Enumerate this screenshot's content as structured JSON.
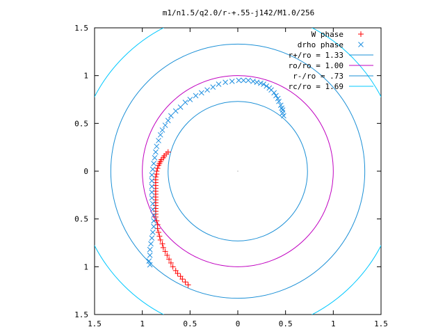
{
  "chart_data": {
    "type": "scatter",
    "title": "m1/n1.5/q2.0/r-+.55-j142/M1.0/256",
    "xlabel": "",
    "ylabel": "",
    "xlim": [
      -1.5,
      1.5
    ],
    "ylim": [
      -1.5,
      1.5
    ],
    "x_tick_values": [
      -1.5,
      -1,
      -0.5,
      0,
      0.5,
      1,
      1.5
    ],
    "x_tick_labels": [
      "1.5",
      "1",
      "0.5",
      "0",
      "0.5",
      "1",
      "1.5"
    ],
    "y_tick_values": [
      1.5,
      1,
      0.5,
      0,
      -0.5,
      -1,
      -1.5
    ],
    "y_tick_labels": [
      "1.5",
      "1",
      "0.5",
      "0",
      "0.5",
      "1",
      "1.5"
    ],
    "grid": false,
    "legend_position": "top-right",
    "series": [
      {
        "name": "W phase",
        "kind": "points",
        "marker": "plus",
        "color": "#ff0000",
        "points": [
          [
            -0.73,
            0.2
          ],
          [
            -0.75,
            0.18
          ],
          [
            -0.77,
            0.16
          ],
          [
            -0.78,
            0.14
          ],
          [
            -0.8,
            0.12
          ],
          [
            -0.81,
            0.1
          ],
          [
            -0.82,
            0.08
          ],
          [
            -0.83,
            0.06
          ],
          [
            -0.84,
            0.03
          ],
          [
            -0.85,
            0.0
          ],
          [
            -0.85,
            -0.03
          ],
          [
            -0.86,
            -0.06
          ],
          [
            -0.86,
            -0.09
          ],
          [
            -0.86,
            -0.12
          ],
          [
            -0.86,
            -0.15
          ],
          [
            -0.86,
            -0.18
          ],
          [
            -0.86,
            -0.21
          ],
          [
            -0.86,
            -0.24
          ],
          [
            -0.86,
            -0.27
          ],
          [
            -0.86,
            -0.3
          ],
          [
            -0.86,
            -0.33
          ],
          [
            -0.86,
            -0.36
          ],
          [
            -0.86,
            -0.39
          ],
          [
            -0.86,
            -0.42
          ],
          [
            -0.86,
            -0.45
          ],
          [
            -0.86,
            -0.48
          ],
          [
            -0.85,
            -0.52
          ],
          [
            -0.84,
            -0.56
          ],
          [
            -0.84,
            -0.6
          ],
          [
            -0.83,
            -0.64
          ],
          [
            -0.82,
            -0.68
          ],
          [
            -0.81,
            -0.72
          ],
          [
            -0.79,
            -0.76
          ],
          [
            -0.78,
            -0.8
          ],
          [
            -0.76,
            -0.84
          ],
          [
            -0.74,
            -0.88
          ],
          [
            -0.72,
            -0.92
          ],
          [
            -0.7,
            -0.96
          ],
          [
            -0.68,
            -1.0
          ],
          [
            -0.65,
            -1.04
          ],
          [
            -0.63,
            -1.07
          ],
          [
            -0.6,
            -1.1
          ],
          [
            -0.58,
            -1.13
          ],
          [
            -0.55,
            -1.16
          ],
          [
            -0.52,
            -1.19
          ]
        ]
      },
      {
        "name": "drho phase",
        "kind": "points",
        "marker": "cross",
        "color": "#1f8fe0",
        "points": [
          [
            0.48,
            0.58
          ],
          [
            0.47,
            0.61
          ],
          [
            0.47,
            0.64
          ],
          [
            0.46,
            0.66
          ],
          [
            0.45,
            0.69
          ],
          [
            0.43,
            0.73
          ],
          [
            0.42,
            0.76
          ],
          [
            0.4,
            0.79
          ],
          [
            0.38,
            0.82
          ],
          [
            0.35,
            0.85
          ],
          [
            0.33,
            0.87
          ],
          [
            0.3,
            0.89
          ],
          [
            0.27,
            0.91
          ],
          [
            0.24,
            0.92
          ],
          [
            0.2,
            0.93
          ],
          [
            0.16,
            0.94
          ],
          [
            0.11,
            0.95
          ],
          [
            0.06,
            0.95
          ],
          [
            0.01,
            0.95
          ],
          [
            -0.06,
            0.94
          ],
          [
            -0.13,
            0.93
          ],
          [
            -0.2,
            0.91
          ],
          [
            -0.26,
            0.88
          ],
          [
            -0.32,
            0.85
          ],
          [
            -0.38,
            0.82
          ],
          [
            -0.44,
            0.79
          ],
          [
            -0.5,
            0.75
          ],
          [
            -0.55,
            0.72
          ],
          [
            -0.6,
            0.67
          ],
          [
            -0.65,
            0.63
          ],
          [
            -0.7,
            0.58
          ],
          [
            -0.73,
            0.53
          ],
          [
            -0.76,
            0.48
          ],
          [
            -0.79,
            0.43
          ],
          [
            -0.81,
            0.38
          ],
          [
            -0.83,
            0.32
          ],
          [
            -0.85,
            0.26
          ],
          [
            -0.86,
            0.2
          ],
          [
            -0.87,
            0.14
          ],
          [
            -0.88,
            0.08
          ],
          [
            -0.89,
            0.02
          ],
          [
            -0.9,
            -0.04
          ],
          [
            -0.9,
            -0.1
          ],
          [
            -0.9,
            -0.16
          ],
          [
            -0.9,
            -0.22
          ],
          [
            -0.9,
            -0.28
          ],
          [
            -0.89,
            -0.34
          ],
          [
            -0.89,
            -0.4
          ],
          [
            -0.88,
            -0.46
          ],
          [
            -0.88,
            -0.52
          ],
          [
            -0.88,
            -0.58
          ],
          [
            -0.89,
            -0.64
          ],
          [
            -0.9,
            -0.7
          ],
          [
            -0.91,
            -0.76
          ],
          [
            -0.92,
            -0.82
          ],
          [
            -0.92,
            -0.88
          ],
          [
            -0.93,
            -0.94
          ],
          [
            -0.92,
            -0.98
          ]
        ]
      },
      {
        "name": "r+/ro = 1.33",
        "kind": "circle",
        "radius": 1.33,
        "color": "#1a8fd6"
      },
      {
        "name": "ro/ro = 1.00",
        "kind": "circle",
        "radius": 1.0,
        "color": "#c000c0"
      },
      {
        "name": "r-/ro = .73",
        "kind": "circle",
        "radius": 0.73,
        "color": "#1a8fd6"
      },
      {
        "name": "rc/ro = 1.69",
        "kind": "circle",
        "radius": 1.69,
        "color": "#00c8ff"
      }
    ]
  }
}
